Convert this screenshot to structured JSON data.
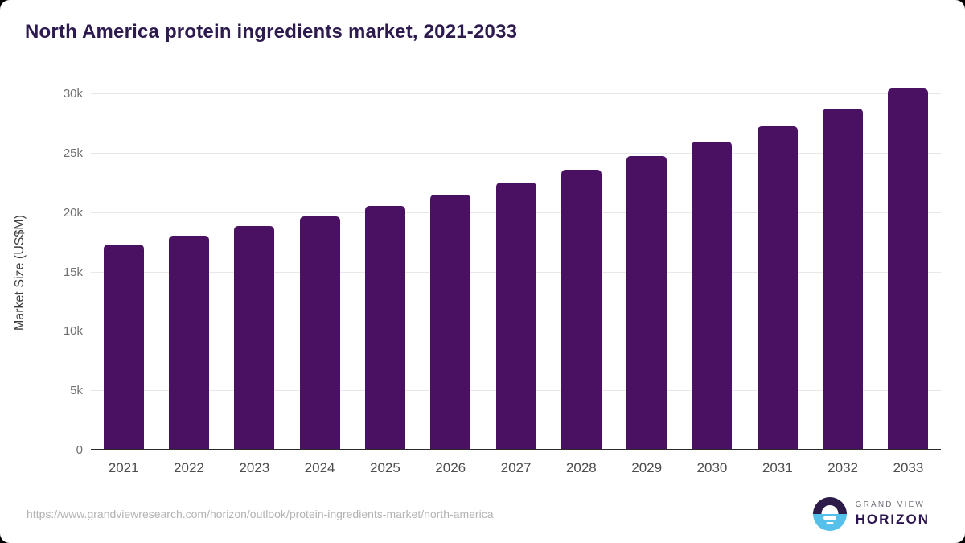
{
  "title": "North America protein ingredients market, 2021-2033",
  "chart_data": {
    "type": "bar",
    "title": "North America protein ingredients market, 2021-2033",
    "categories": [
      "2021",
      "2022",
      "2023",
      "2024",
      "2025",
      "2026",
      "2027",
      "2028",
      "2029",
      "2030",
      "2031",
      "2032",
      "2033"
    ],
    "values": [
      17200,
      17950,
      18750,
      19600,
      20450,
      21400,
      22400,
      23500,
      24650,
      25850,
      27150,
      28650,
      30350
    ],
    "xlabel": "",
    "ylabel": "Market Size (US$M)",
    "ylim": [
      0,
      31151
    ],
    "yticks": [
      {
        "value": 0,
        "label": "0"
      },
      {
        "value": 5000,
        "label": "5k"
      },
      {
        "value": 10000,
        "label": "10k"
      },
      {
        "value": 15000,
        "label": "15k"
      },
      {
        "value": 20000,
        "label": "20k"
      },
      {
        "value": 25000,
        "label": "25k"
      },
      {
        "value": 30000,
        "label": "30k"
      }
    ],
    "grid": "horizontal",
    "legend": "none",
    "bar_color": "#4a1162"
  },
  "footer": {
    "source_url": "https://www.grandviewresearch.com/horizon/outlook/protein-ingredients-market/north-america",
    "logo": {
      "line1": "GRAND VIEW",
      "line2": "HORIZON"
    }
  },
  "colors": {
    "title": "#2d1a4f",
    "bar": "#4a1162",
    "gridline": "#e8e8e8",
    "axis_line": "#2b2b2b",
    "tick_label": "#707070",
    "x_label": "#4d4d4d",
    "url_text": "#b3b3b3",
    "logo_dark": "#2d1b4a",
    "logo_blue": "#55c1ea"
  }
}
